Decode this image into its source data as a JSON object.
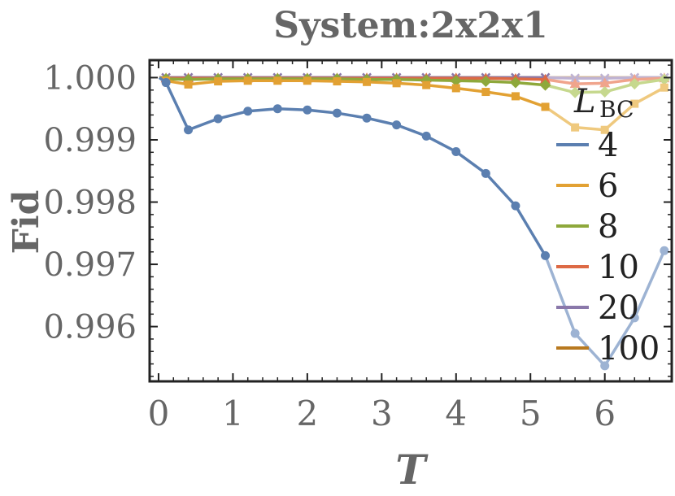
{
  "chart_data": {
    "type": "line",
    "title": "System:2x2x1",
    "xlabel": "T",
    "ylabel": "Fid",
    "xlim": [
      -0.12,
      6.9
    ],
    "ylim": [
      0.99512,
      1.00028
    ],
    "xticks": [
      0,
      1,
      2,
      3,
      4,
      5,
      6
    ],
    "xtick_labels": [
      "0",
      "1",
      "2",
      "3",
      "4",
      "5",
      "6"
    ],
    "yticks": [
      0.996,
      0.997,
      0.998,
      0.999,
      1.0
    ],
    "ytick_labels": [
      "0.996",
      "0.997",
      "0.998",
      "0.999",
      "1.000"
    ],
    "legend_title": "L",
    "legend_title_sub": "BC",
    "legend_position": "right",
    "grid": false,
    "series": [
      {
        "name": "4",
        "color": "#5b7fb0",
        "faded_color": "#9db3d3",
        "marker": "circle",
        "x": [
          0.01,
          0.1,
          0.4,
          0.8,
          1.2,
          1.6,
          2.0,
          2.4,
          2.8,
          3.2,
          3.6,
          4.0,
          4.4,
          4.8,
          5.2,
          5.6,
          6.0,
          6.4,
          6.8
        ],
        "y": [
          1.0,
          0.99992,
          0.99916,
          0.99934,
          0.99946,
          0.9995,
          0.99948,
          0.99943,
          0.99935,
          0.99924,
          0.99906,
          0.99881,
          0.99846,
          0.99794,
          0.99714,
          0.99589,
          0.99537,
          0.99614,
          0.99722
        ],
        "faded_from": 14
      },
      {
        "name": "6",
        "color": "#e2a133",
        "faded_color": "#efc97e",
        "marker": "square",
        "x": [
          0.01,
          0.1,
          0.4,
          0.8,
          1.2,
          1.6,
          2.0,
          2.4,
          2.8,
          3.2,
          3.6,
          4.0,
          4.4,
          4.8,
          5.2,
          5.6,
          6.0,
          6.4,
          6.8
        ],
        "y": [
          1.0,
          0.99995,
          0.99989,
          0.99994,
          0.99995,
          0.99995,
          0.99995,
          0.99994,
          0.99993,
          0.99991,
          0.99988,
          0.99983,
          0.99977,
          0.9997,
          0.99953,
          0.9992,
          0.99916,
          0.99958,
          0.99984
        ],
        "faded_from": 14
      },
      {
        "name": "8",
        "color": "#8ea83b",
        "faded_color": "#c6d88e",
        "marker": "diamond",
        "x": [
          0.01,
          0.1,
          0.4,
          0.8,
          1.2,
          1.6,
          2.0,
          2.4,
          2.8,
          3.2,
          3.6,
          4.0,
          4.4,
          4.8,
          5.2,
          5.6,
          6.0,
          6.4,
          6.8
        ],
        "y": [
          1.0,
          0.99998,
          0.99997,
          0.99998,
          0.99998,
          0.99998,
          0.99998,
          0.99998,
          0.99997,
          0.99997,
          0.99996,
          0.99995,
          0.99994,
          0.99992,
          0.99988,
          0.99976,
          0.99977,
          0.9999,
          0.99997
        ],
        "faded_from": 14
      },
      {
        "name": "10",
        "color": "#dd6a45",
        "faded_color": "#f0a48c",
        "marker": "triangle",
        "x": [
          0.01,
          0.1,
          0.4,
          0.8,
          1.2,
          1.6,
          2.0,
          2.4,
          2.8,
          3.2,
          3.6,
          4.0,
          4.4,
          4.8,
          5.2,
          5.6,
          6.0,
          6.4,
          6.8
        ],
        "y": [
          1.0,
          0.99999,
          0.99999,
          0.99999,
          0.99999,
          0.99999,
          0.99999,
          0.99999,
          0.99999,
          0.99999,
          0.99999,
          0.99999,
          0.99999,
          0.99998,
          0.99997,
          0.9999,
          0.99991,
          0.99997,
          0.99999
        ],
        "faded_from": 14
      },
      {
        "name": "20",
        "color": "#8a78aa",
        "faded_color": "#bfb3d3",
        "marker": "x",
        "x": [
          0.01,
          0.1,
          0.4,
          0.8,
          1.2,
          1.6,
          2.0,
          2.4,
          2.8,
          3.2,
          3.6,
          4.0,
          4.4,
          4.8,
          5.2,
          5.6,
          6.0,
          6.4,
          6.8
        ],
        "y": [
          1.0,
          1.0,
          1.0,
          1.0,
          1.0,
          1.0,
          1.0,
          1.0,
          1.0,
          1.0,
          1.0,
          1.0,
          1.0,
          1.0,
          1.0,
          0.99999,
          0.99999,
          1.0,
          1.0
        ],
        "faded_from": 14
      },
      {
        "name": "100",
        "color": "#b8791f",
        "faded_color": "#d9b47e",
        "marker": "none",
        "x": [
          0.01,
          0.1,
          0.4,
          0.8,
          1.2,
          1.6,
          2.0,
          2.4,
          2.8,
          3.2,
          3.6,
          4.0,
          4.4,
          4.8,
          5.2,
          5.6,
          6.0,
          6.4,
          6.8
        ],
        "y": [
          1.0,
          1.0,
          1.0,
          1.0,
          1.0,
          1.0,
          1.0,
          1.0,
          1.0,
          1.0,
          1.0,
          1.0,
          1.0,
          1.0,
          1.0,
          1.0,
          1.0,
          1.0,
          1.0
        ],
        "faded_from": 14
      }
    ]
  }
}
